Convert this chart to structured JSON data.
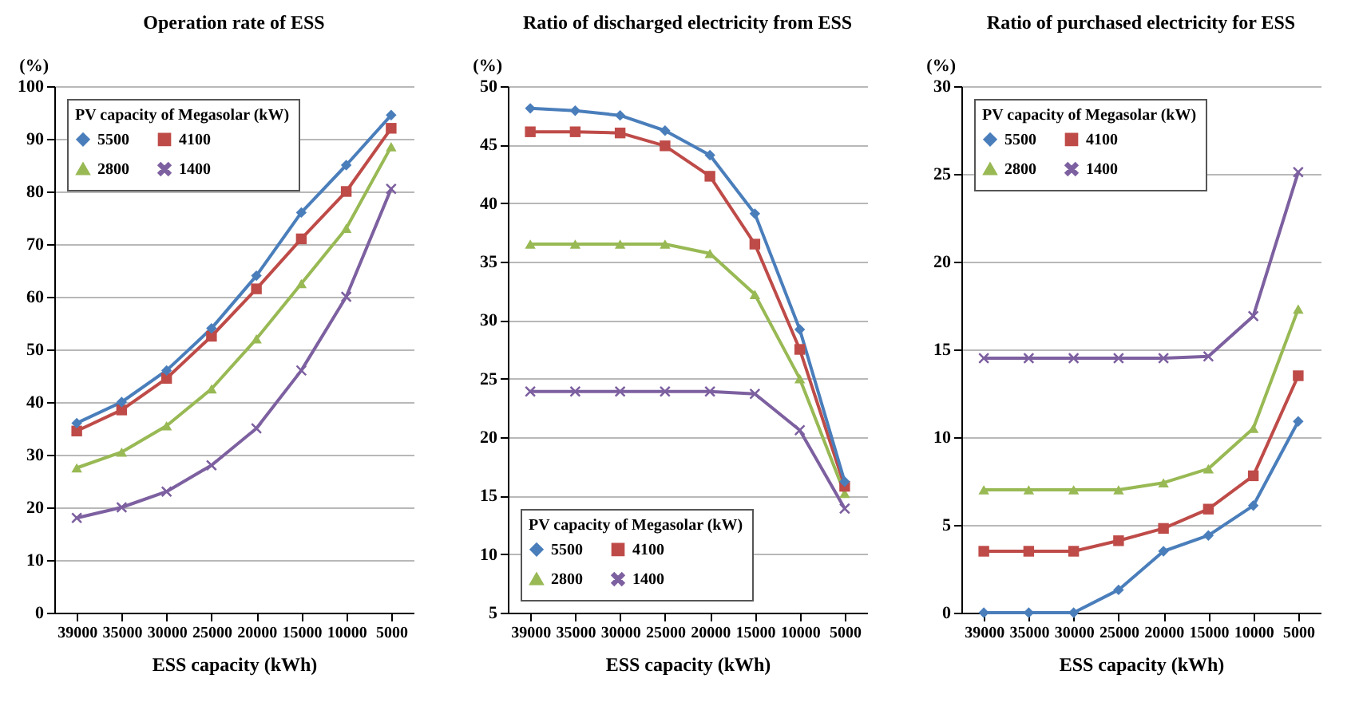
{
  "chart_data": [
    {
      "type": "line",
      "title": "Operation rate of ESS",
      "ylabel": "(%)",
      "xlabel": "ESS capacity (kWh)",
      "legend_title": "PV capacity of Megasolar (kW)",
      "categories": [
        "39000",
        "35000",
        "30000",
        "25000",
        "20000",
        "15000",
        "10000",
        "5000"
      ],
      "series": [
        {
          "name": "5500",
          "color": "#4a7ebb",
          "marker": "diamond",
          "values": [
            36,
            40,
            46,
            54,
            64,
            76,
            85,
            94.5
          ]
        },
        {
          "name": "4100",
          "color": "#be4b48",
          "marker": "square",
          "values": [
            34.5,
            38.5,
            44.5,
            52.5,
            61.5,
            71,
            80,
            92
          ]
        },
        {
          "name": "2800",
          "color": "#98b954",
          "marker": "triangle",
          "values": [
            27.5,
            30.5,
            35.5,
            42.5,
            52,
            62.5,
            73,
            88.5
          ]
        },
        {
          "name": "1400",
          "color": "#7d60a0",
          "marker": "cross",
          "values": [
            18,
            20,
            23,
            28,
            35,
            46,
            60,
            80.5
          ]
        }
      ],
      "ylim": [
        0,
        100
      ],
      "yticks": [
        0,
        10,
        20,
        30,
        40,
        50,
        60,
        70,
        80,
        90,
        100
      ],
      "grid": "y",
      "legend": "top left"
    },
    {
      "type": "line",
      "title": "Ratio of  discharged electricity from ESS",
      "ylabel": "(%)",
      "xlabel": "ESS capacity (kWh)",
      "legend_title": "PV capacity of Megasolar (kW)",
      "categories": [
        "39000",
        "35000",
        "30000",
        "25000",
        "20000",
        "15000",
        "10000",
        "5000"
      ],
      "series": [
        {
          "name": "5500",
          "color": "#4a7ebb",
          "marker": "diamond",
          "values": [
            48.1,
            47.9,
            47.5,
            46.2,
            44.1,
            39.1,
            29.2,
            16.2
          ]
        },
        {
          "name": "4100",
          "color": "#be4b48",
          "marker": "square",
          "values": [
            46.1,
            46.1,
            46.0,
            44.9,
            42.3,
            36.5,
            27.5,
            15.8
          ]
        },
        {
          "name": "2800",
          "color": "#98b954",
          "marker": "triangle",
          "values": [
            36.5,
            36.5,
            36.5,
            36.5,
            35.7,
            32.2,
            25,
            15.2
          ]
        },
        {
          "name": "1400",
          "color": "#7d60a0",
          "marker": "cross",
          "values": [
            23.9,
            23.9,
            23.9,
            23.9,
            23.9,
            23.7,
            20.6,
            13.9
          ]
        }
      ],
      "ylim": [
        5,
        50
      ],
      "yticks": [
        5,
        10,
        15,
        20,
        25,
        30,
        35,
        40,
        45,
        50
      ],
      "grid": "y",
      "legend": "bottom left"
    },
    {
      "type": "line",
      "title": "Ratio of  purchased electricity for ESS",
      "ylabel": "(%)",
      "xlabel": "ESS capacity (kWh)",
      "legend_title": "PV capacity of Megasolar (kW)",
      "categories": [
        "39000",
        "35000",
        "30000",
        "25000",
        "20000",
        "15000",
        "10000",
        "5000"
      ],
      "series": [
        {
          "name": "5500",
          "color": "#4a7ebb",
          "marker": "diamond",
          "values": [
            0,
            0,
            0,
            1.3,
            3.5,
            4.4,
            6.1,
            10.9
          ]
        },
        {
          "name": "4100",
          "color": "#be4b48",
          "marker": "square",
          "values": [
            3.5,
            3.5,
            3.5,
            4.1,
            4.8,
            5.9,
            7.8,
            13.5
          ]
        },
        {
          "name": "2800",
          "color": "#98b954",
          "marker": "triangle",
          "values": [
            7,
            7,
            7,
            7,
            7.4,
            8.2,
            10.5,
            17.3
          ]
        },
        {
          "name": "1400",
          "color": "#7d60a0",
          "marker": "cross",
          "values": [
            14.5,
            14.5,
            14.5,
            14.5,
            14.5,
            14.6,
            16.9,
            25.1
          ]
        }
      ],
      "ylim": [
        0,
        30
      ],
      "yticks": [
        0,
        5,
        10,
        15,
        20,
        25,
        30
      ],
      "grid": "y",
      "legend": "top left"
    }
  ]
}
